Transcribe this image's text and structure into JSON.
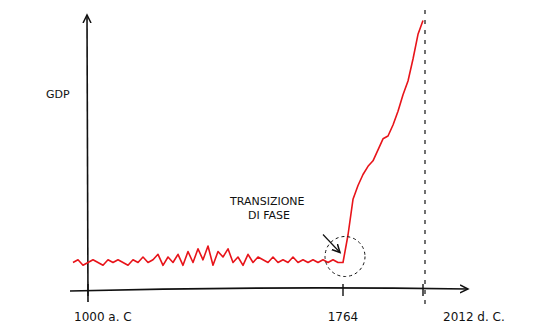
{
  "chart_data": {
    "type": "line",
    "y_label": "GDP",
    "annotation": "TRANSIZIONE DI FASE",
    "categories": [
      null,
      null,
      null,
      "1000 a. C",
      null,
      null,
      null,
      null,
      null,
      null,
      null,
      null,
      null,
      null,
      null,
      null,
      null,
      null,
      null,
      null,
      null,
      null,
      null,
      null,
      null,
      null,
      null,
      null,
      null,
      null,
      null,
      null,
      null,
      null,
      null,
      null,
      null,
      null,
      null,
      null,
      null,
      null,
      null,
      null,
      null,
      null,
      null,
      null,
      null,
      null,
      null,
      null,
      null,
      null,
      "1764",
      null,
      null,
      null,
      null,
      null,
      null,
      null,
      null,
      null,
      null,
      null,
      null,
      null,
      null,
      null,
      "2012 d. C."
    ],
    "values": [
      10,
      11,
      9,
      10,
      11,
      10,
      9,
      11,
      10,
      11,
      10,
      9,
      11,
      10,
      12,
      10,
      11,
      13,
      9,
      12,
      10,
      13,
      9,
      14,
      10,
      15,
      11,
      16,
      9,
      14,
      12,
      15,
      10,
      12,
      9,
      13,
      10,
      12,
      11,
      10,
      12,
      10,
      11,
      10,
      12,
      10,
      11,
      10,
      11,
      10,
      11,
      10,
      11,
      10,
      10,
      20,
      33,
      38,
      42,
      45,
      47,
      51,
      55,
      56,
      60,
      65,
      71,
      76,
      84,
      93,
      98
    ],
    "color": "#e8141a",
    "ylim": [
      0,
      100
    ],
    "tick_labels": "x"
  }
}
